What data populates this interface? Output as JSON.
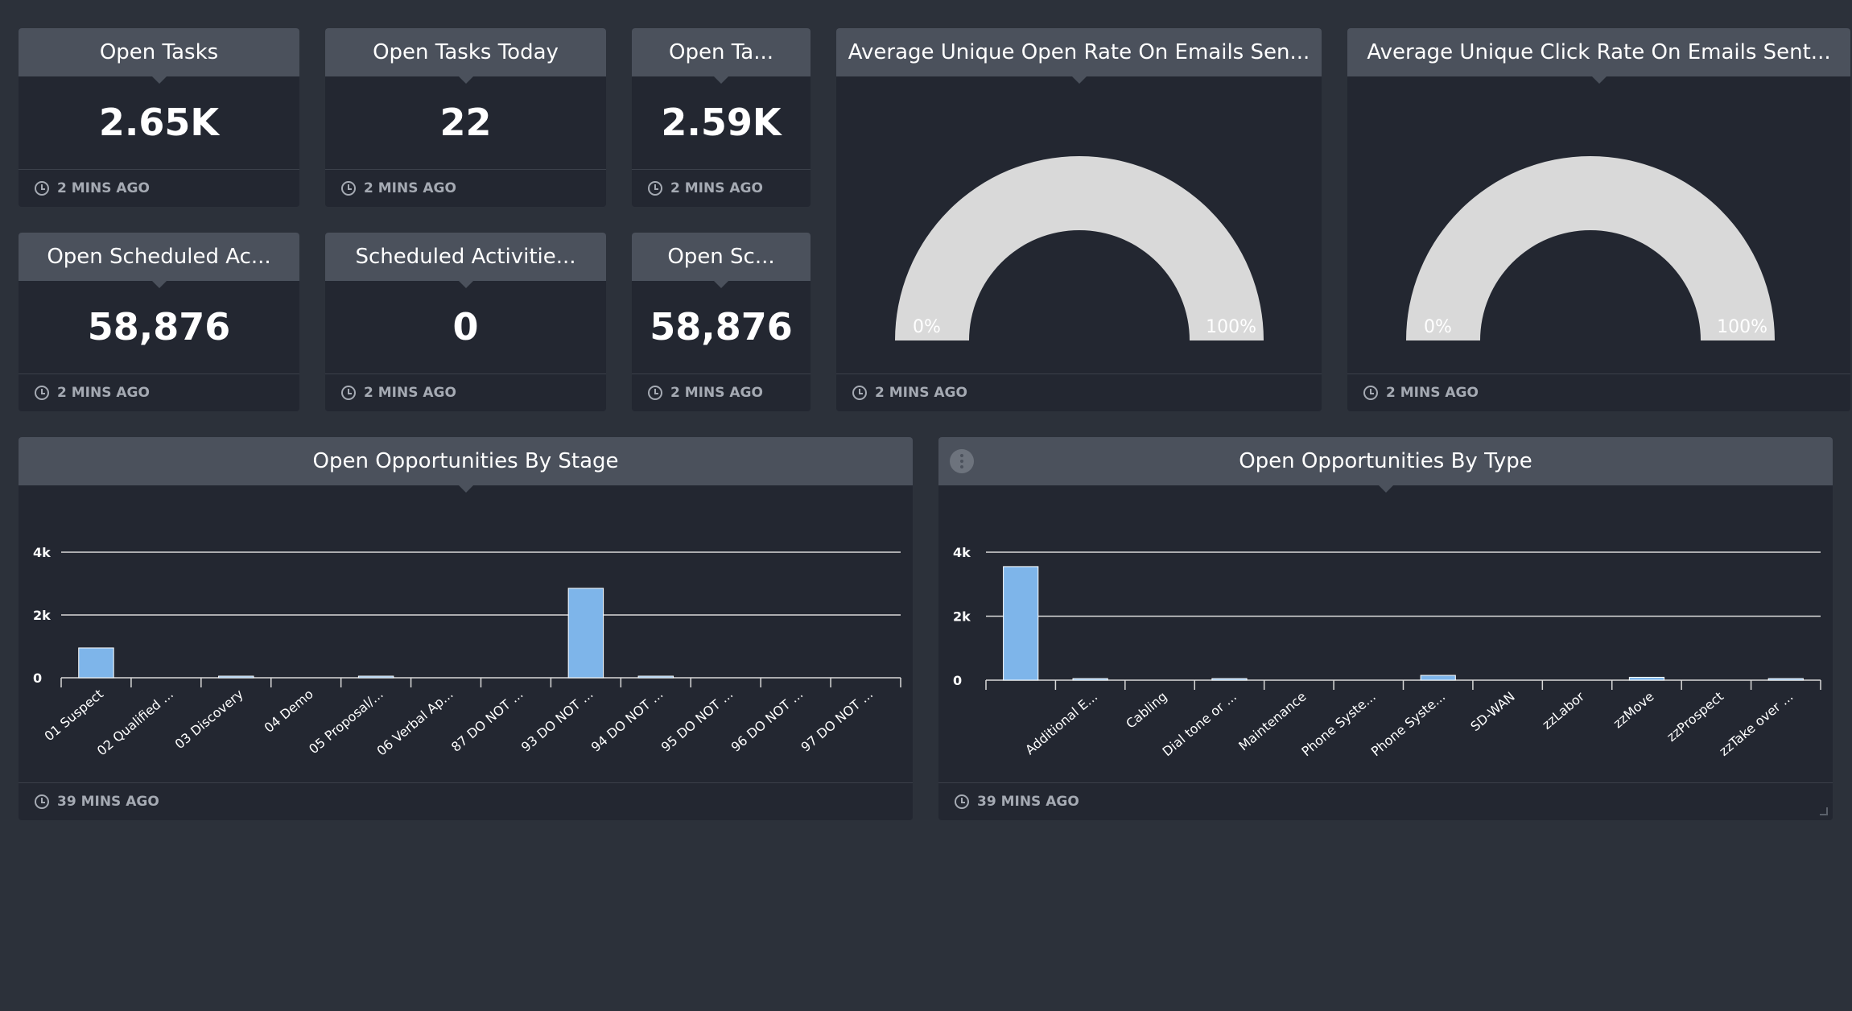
{
  "tiles": {
    "open_tasks": {
      "title": "Open Tasks",
      "value": "2.65K",
      "updated": "2 MINS AGO"
    },
    "open_tasks_today": {
      "title": "Open Tasks Today",
      "value": "22",
      "updated": "2 MINS AGO"
    },
    "open_ta": {
      "title": "Open Ta...",
      "value": "2.59K",
      "updated": "2 MINS AGO"
    },
    "open_scheduled_ac": {
      "title": "Open Scheduled Ac...",
      "value": "58,876",
      "updated": "2 MINS AGO"
    },
    "scheduled_activities": {
      "title": "Scheduled Activitie...",
      "value": "0",
      "updated": "2 MINS AGO"
    },
    "open_sc": {
      "title": "Open Sc...",
      "value": "58,876",
      "updated": "2 MINS AGO"
    }
  },
  "gauges": {
    "open_rate": {
      "title": "Average Unique Open Rate On Emails Sen...",
      "min_label": "0%",
      "max_label": "100%",
      "updated": "2 MINS AGO"
    },
    "click_rate": {
      "title": "Average Unique Click Rate On Emails Sent...",
      "min_label": "0%",
      "max_label": "100%",
      "updated": "2 MINS AGO"
    }
  },
  "colors": {
    "page_bg": "#2c313a",
    "tile_bg": "#232731",
    "header_bg": "#4b515c",
    "bar": "#7eb5ea",
    "gauge": "#d9d9d9",
    "muted_text": "#a5aab3"
  },
  "charts": {
    "by_stage": {
      "title": "Open Opportunities By Stage",
      "updated": "39 MINS AGO"
    },
    "by_type": {
      "title": "Open Opportunities By Type",
      "updated": "39 MINS AGO",
      "menu_icon": "more-dots-icon"
    }
  },
  "chart_data": [
    {
      "type": "bar",
      "title": "Open Opportunities By Stage",
      "categories": [
        "01 Suspect",
        "02 Qualified ...",
        "03 Discovery",
        "04 Demo",
        "05 Proposal/...",
        "06 Verbal Ap...",
        "87 DO NOT ...",
        "93 DO NOT ...",
        "94 DO NOT ...",
        "95 DO NOT ...",
        "96 DO NOT ...",
        "97 DO NOT ..."
      ],
      "values": [
        950,
        0,
        30,
        0,
        25,
        0,
        0,
        2850,
        30,
        0,
        0,
        0
      ],
      "yticks": [
        "0",
        "2k",
        "4k"
      ],
      "ylim": [
        0,
        4000
      ],
      "grid": true
    },
    {
      "type": "bar",
      "title": "Open Opportunities By Type",
      "categories": [
        "",
        "Additional E...",
        "Cabling",
        "Dial tone or ...",
        "Maintenance",
        "Phone Syste...",
        "Phone Syste...",
        "SD-WAN",
        "zzLabor",
        "zzMove",
        "zzProspect",
        "zzTake over ..."
      ],
      "values": [
        3550,
        20,
        0,
        20,
        0,
        0,
        150,
        0,
        0,
        90,
        0,
        20
      ],
      "yticks": [
        "0",
        "2k",
        "4k"
      ],
      "ylim": [
        0,
        4000
      ],
      "grid": true
    }
  ]
}
